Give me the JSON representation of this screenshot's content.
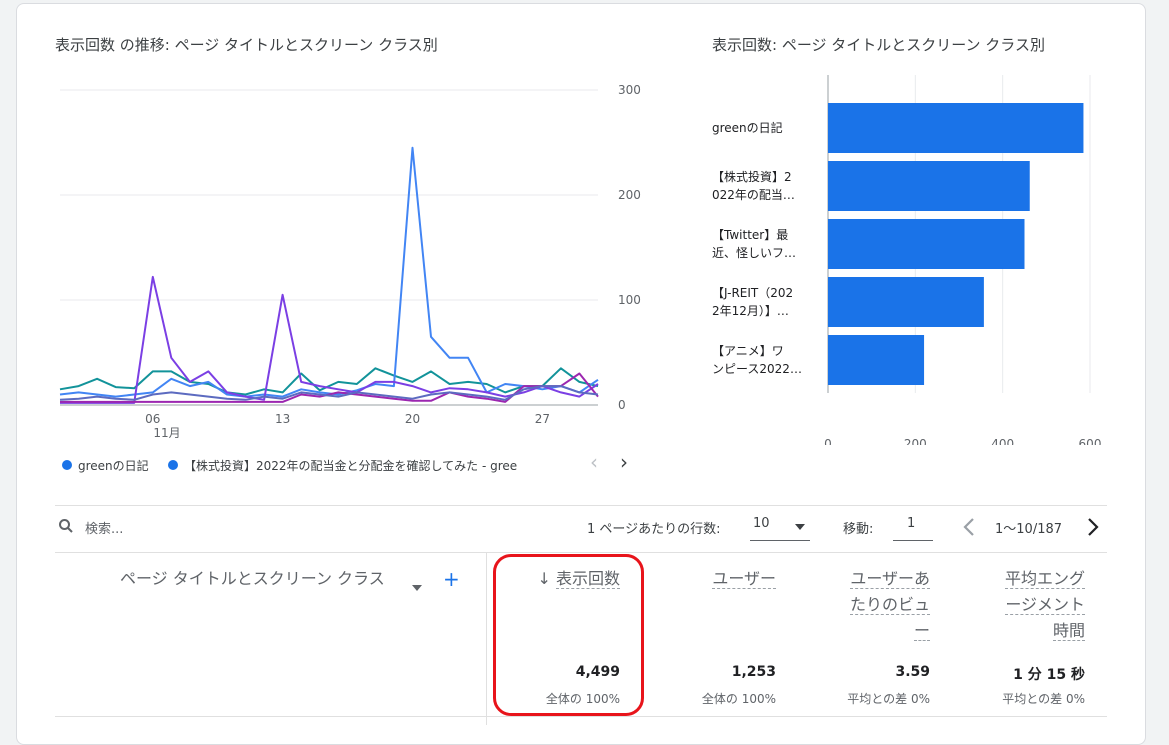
{
  "line_chart": {
    "title": "表示回数 の推移: ページ タイトルとスクリーン クラス別",
    "y_ticks": [
      "300",
      "200",
      "100",
      "0"
    ],
    "x_ticks": [
      "06",
      "13",
      "20",
      "27"
    ],
    "x_month": "11月",
    "legend": [
      {
        "label": "greenの日記",
        "color": "#1a73e8"
      },
      {
        "label": "【株式投資】2022年の配当金と分配金を確認してみた - gree",
        "color": "#1a73e8"
      }
    ],
    "legend_prev": "‹",
    "legend_next": "›"
  },
  "bar_chart": {
    "title": "表示回数: ページ タイトルとスクリーン クラス別",
    "x_ticks": [
      "0",
      "200",
      "400",
      "600"
    ]
  },
  "chart_data": [
    {
      "type": "line",
      "title": "表示回数 の推移: ページ タイトルとスクリーン クラス別",
      "x": [
        1,
        2,
        3,
        4,
        5,
        6,
        7,
        8,
        9,
        10,
        11,
        12,
        13,
        14,
        15,
        16,
        17,
        18,
        19,
        20,
        21,
        22,
        23,
        24,
        25,
        26,
        27,
        28,
        29,
        30
      ],
      "x_tick_labels": [
        "06",
        "13",
        "20",
        "27"
      ],
      "ylim": [
        0,
        300
      ],
      "series": [
        {
          "name": "greenの日記",
          "color": "#12939a",
          "values": [
            15,
            18,
            25,
            17,
            16,
            32,
            32,
            22,
            20,
            12,
            10,
            15,
            12,
            30,
            14,
            22,
            20,
            35,
            28,
            22,
            32,
            20,
            22,
            20,
            12,
            18,
            18,
            35,
            22,
            18
          ]
        },
        {
          "name": "【株式投資】2022年の配当金と分配金を確認してみた - gree",
          "color": "#4285f4",
          "values": [
            10,
            12,
            10,
            8,
            10,
            12,
            25,
            18,
            22,
            10,
            8,
            10,
            8,
            15,
            12,
            10,
            14,
            20,
            18,
            245,
            65,
            45,
            45,
            12,
            20,
            18,
            15,
            18,
            12,
            24
          ]
        },
        {
          "name": "",
          "color": "#7b3fe4",
          "values": [
            2,
            2,
            2,
            2,
            2,
            122,
            45,
            22,
            32,
            12,
            8,
            5,
            105,
            22,
            18,
            15,
            12,
            22,
            22,
            18,
            12,
            16,
            15,
            12,
            8,
            12,
            18,
            12,
            8,
            20
          ]
        },
        {
          "name": "",
          "color": "#9c27b0",
          "values": [
            3,
            3,
            3,
            3,
            3,
            3,
            3,
            3,
            3,
            3,
            3,
            3,
            3,
            10,
            8,
            12,
            10,
            8,
            6,
            4,
            4,
            12,
            8,
            6,
            3,
            18,
            18,
            18,
            30,
            8
          ]
        },
        {
          "name": "",
          "color": "#5c6bc0",
          "values": [
            5,
            6,
            8,
            6,
            5,
            10,
            12,
            10,
            8,
            6,
            5,
            8,
            6,
            12,
            10,
            8,
            12,
            10,
            8,
            6,
            10,
            12,
            10,
            8,
            5,
            15,
            18,
            18,
            12,
            10
          ]
        }
      ]
    },
    {
      "type": "bar",
      "orientation": "horizontal",
      "title": "表示回数: ページ タイトルとスクリーン クラス別",
      "categories": [
        "greenの日記",
        "【株式投資】2022年の配当…",
        "【Twitter】最近、怪しいフ…",
        "【J-REIT（2022年12月）】…",
        "【アニメ】ワンピース2022…"
      ],
      "category_lines": [
        [
          "greenの日記"
        ],
        [
          "【株式投資】2",
          "022年の配当…"
        ],
        [
          "【Twitter】最",
          "近、怪しいフ…"
        ],
        [
          "【J-REIT（202",
          "2年12月）】…"
        ],
        [
          "【アニメ】ワ",
          "ンピース2022…"
        ]
      ],
      "values": [
        585,
        462,
        450,
        357,
        220
      ],
      "xlim": [
        0,
        600
      ],
      "color": "#1a73e8"
    }
  ],
  "table": {
    "search_placeholder": "検索...",
    "rows_per_page_label": "1 ページあたりの行数:",
    "rows_per_page_value": "10",
    "goto_label": "移動:",
    "goto_value": "1",
    "pagination_text": "1〜10/187",
    "dimension_header": "ページ タイトルとスクリーン クラス",
    "add_label": "+",
    "sort_arrow": "↓",
    "metrics": [
      {
        "header_lines": [
          "表示回数"
        ],
        "total": "4,499",
        "sub": "全体の 100%"
      },
      {
        "header_lines": [
          "ユーザー"
        ],
        "total": "1,253",
        "sub": "全体の 100%"
      },
      {
        "header_lines": [
          "ユーザーあ",
          "たりのビュ",
          "ー"
        ],
        "total": "3.59",
        "sub": "平均との差 0%"
      },
      {
        "header_lines": [
          "平均エング",
          "ージメント",
          "時間"
        ],
        "total": "1 分 15 秒",
        "sub": "平均との差 0%"
      }
    ]
  },
  "highlight_color": "#e8141b"
}
